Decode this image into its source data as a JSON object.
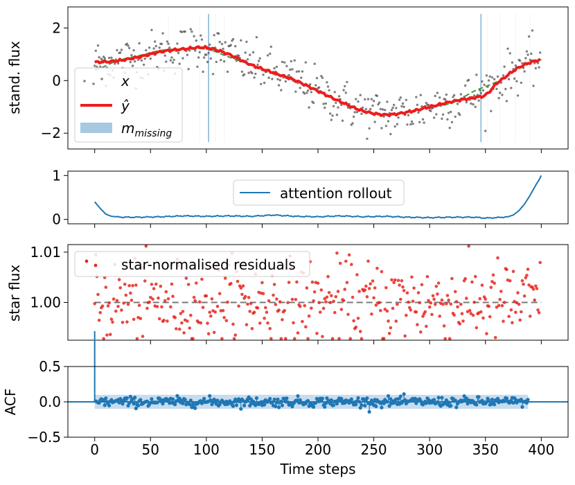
{
  "chart_data": [
    {
      "type": "line",
      "panel": "reconstruction",
      "ylabel": "stand. flux",
      "xlim": [
        -24,
        424
      ],
      "ylim": [
        -2.6,
        2.8
      ],
      "yticks": [
        -2,
        0,
        2
      ],
      "xticks": [
        0,
        50,
        100,
        150,
        200,
        250,
        300,
        350,
        400
      ],
      "legend": {
        "placement": "lower-left",
        "entries": [
          {
            "label": "x",
            "style": "dots",
            "color": "#555555"
          },
          {
            "label": "ŷ",
            "style": "line",
            "color": "#ee1c1c"
          },
          {
            "label": "m_missing",
            "style": "patch",
            "color": "#a6c8e0"
          }
        ]
      },
      "series": [
        {
          "name": "x",
          "kind": "scatter",
          "color": "#555555",
          "trend_x": [
            0,
            20,
            40,
            60,
            80,
            100,
            120,
            140,
            160,
            180,
            200,
            220,
            240,
            260,
            280,
            300,
            320,
            340,
            360,
            380,
            400
          ],
          "trend_y": [
            0.7,
            0.75,
            0.9,
            1.1,
            1.2,
            1.25,
            1.0,
            0.6,
            0.3,
            0.0,
            -0.4,
            -0.8,
            -1.15,
            -1.3,
            -1.2,
            -1.0,
            -0.8,
            -0.6,
            -0.1,
            0.5,
            0.8
          ],
          "noise_sd": 0.45,
          "n_points": 400
        },
        {
          "name": "ŷ",
          "kind": "line",
          "color": "#ee1c1c",
          "x": [
            0,
            20,
            40,
            60,
            80,
            100,
            120,
            140,
            160,
            180,
            200,
            220,
            240,
            260,
            280,
            300,
            320,
            340,
            350,
            360,
            380,
            400
          ],
          "y": [
            0.7,
            0.75,
            0.9,
            1.1,
            1.2,
            1.25,
            1.0,
            0.6,
            0.3,
            0.0,
            -0.4,
            -0.8,
            -1.15,
            -1.3,
            -1.2,
            -1.0,
            -0.8,
            -0.65,
            -0.55,
            -0.1,
            0.5,
            0.8
          ]
        },
        {
          "name": "trend",
          "kind": "dashed",
          "color": "#3a9a3a",
          "x": [
            0,
            20,
            40,
            60,
            80,
            100,
            120,
            140,
            160,
            180,
            200,
            220,
            240,
            260,
            280,
            300,
            320,
            340,
            360,
            380,
            400
          ],
          "y": [
            0.4,
            0.75,
            0.95,
            1.15,
            1.2,
            1.2,
            0.9,
            0.6,
            0.3,
            0.0,
            -0.4,
            -0.8,
            -1.15,
            -1.3,
            -1.2,
            -1.0,
            -0.85,
            -0.4,
            -0.05,
            0.45,
            0.8
          ]
        }
      ],
      "missing_lines": [
        102,
        346
      ],
      "faint_lines": [
        66,
        94,
        108,
        116,
        352,
        363,
        377,
        390
      ]
    },
    {
      "type": "line",
      "panel": "attention",
      "ylim": [
        -0.1,
        1.1
      ],
      "yticks": [
        0,
        1
      ],
      "legend": {
        "placement": "top-center",
        "entries": [
          {
            "label": "attention rollout",
            "style": "line",
            "color": "#1f77b4"
          }
        ]
      },
      "series": [
        {
          "name": "attention rollout",
          "color": "#1f77b4",
          "x": [
            0,
            5,
            10,
            15,
            25,
            40,
            60,
            80,
            100,
            120,
            140,
            160,
            180,
            200,
            220,
            240,
            260,
            280,
            300,
            320,
            340,
            350,
            360,
            370,
            375,
            380,
            385,
            390,
            395,
            398,
            400
          ],
          "y": [
            0.4,
            0.25,
            0.12,
            0.07,
            0.05,
            0.05,
            0.06,
            0.08,
            0.07,
            0.08,
            0.07,
            0.1,
            0.07,
            0.06,
            0.08,
            0.06,
            0.07,
            0.05,
            0.04,
            0.05,
            0.05,
            0.03,
            0.04,
            0.06,
            0.1,
            0.2,
            0.35,
            0.55,
            0.78,
            0.9,
            1.0
          ]
        }
      ]
    },
    {
      "type": "scatter",
      "panel": "residuals",
      "ylabel": "star flux",
      "ylim": [
        0.9925,
        1.0115
      ],
      "yticks": [
        1.0,
        1.01
      ],
      "ytick_labels": [
        "1.00",
        "1.01"
      ],
      "reference_line": 1.0,
      "legend": {
        "placement": "top-left",
        "entries": [
          {
            "label": "star-normalised residuals",
            "style": "dots",
            "color": "#e8261f"
          }
        ]
      },
      "series": [
        {
          "name": "star-normalised residuals",
          "color": "#e8261f",
          "center": 1.0,
          "spread": 0.0042,
          "n_points": 400
        }
      ]
    },
    {
      "type": "scatter",
      "panel": "acf",
      "ylabel": "ACF",
      "xlabel": "Time steps",
      "ylim": [
        -0.5,
        0.5
      ],
      "yticks": [
        -0.5,
        0.0,
        0.5
      ],
      "ytick_labels": [
        "−0.5",
        "0.0",
        "0.5"
      ],
      "confidence_band": [
        -0.1,
        0.1
      ],
      "band_x": [
        0,
        388
      ],
      "lag0_value": 1.0,
      "series": [
        {
          "name": "ACF",
          "color": "#1f77b4",
          "n_lags": 388,
          "spread": 0.035
        }
      ],
      "xtick_labels": [
        "0",
        "50",
        "100",
        "150",
        "200",
        "250",
        "300",
        "350",
        "400"
      ]
    }
  ],
  "legend_labels": {
    "x": "x",
    "yhat": "ŷ",
    "missing": "m",
    "missing_sub": "missing",
    "attention": "attention rollout",
    "residuals": "star-normalised residuals"
  },
  "axis_labels": {
    "p1_ylabel": "stand. flux",
    "p3_ylabel": "star flux",
    "p4_ylabel": "ACF",
    "xlabel": "Time steps"
  },
  "colors": {
    "data_dots": "#555555",
    "reconstruction": "#ee1c1c",
    "trend": "#3a9a3a",
    "missing": "#a6c8e0",
    "attention": "#1f77b4",
    "residuals": "#e8261f",
    "acf": "#1f77b4",
    "acf_band": "#c2d8ec"
  }
}
